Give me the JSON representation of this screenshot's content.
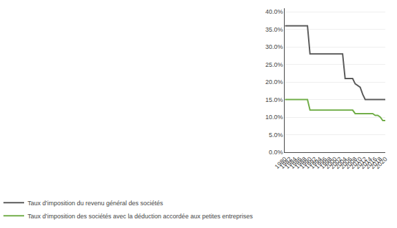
{
  "chart_data": {
    "type": "line",
    "x": [
      1980,
      1981,
      1982,
      1983,
      1984,
      1985,
      1986,
      1987,
      1988,
      1989,
      1990,
      1991,
      1992,
      1993,
      1994,
      1995,
      1996,
      1997,
      1998,
      1999,
      2000,
      2001,
      2002,
      2003,
      2004,
      2005,
      2006,
      2007,
      2008,
      2009,
      2010,
      2011,
      2012,
      2013,
      2014,
      2015,
      2016,
      2017,
      2018,
      2019,
      2020
    ],
    "series": [
      {
        "name": "Taux d’imposition du revenu général des sociétés",
        "color": "#595959",
        "values": [
          0.36,
          0.36,
          0.36,
          0.36,
          0.36,
          0.36,
          0.36,
          0.36,
          0.36,
          0.36,
          0.28,
          0.28,
          0.28,
          0.28,
          0.28,
          0.28,
          0.28,
          0.28,
          0.28,
          0.28,
          0.28,
          0.28,
          0.28,
          0.28,
          0.21,
          0.21,
          0.21,
          0.21,
          0.195,
          0.19,
          0.185,
          0.165,
          0.15,
          0.15,
          0.15,
          0.15,
          0.15,
          0.15,
          0.15,
          0.15,
          0.15
        ]
      },
      {
        "name": "Taux d’imposition des sociétés avec la déduction accordée aux petites entreprises",
        "color": "#70AD47",
        "values": [
          0.15,
          0.15,
          0.15,
          0.15,
          0.15,
          0.15,
          0.15,
          0.15,
          0.15,
          0.15,
          0.12,
          0.12,
          0.12,
          0.12,
          0.12,
          0.12,
          0.12,
          0.12,
          0.12,
          0.12,
          0.12,
          0.12,
          0.12,
          0.12,
          0.12,
          0.12,
          0.12,
          0.12,
          0.11,
          0.11,
          0.11,
          0.11,
          0.11,
          0.11,
          0.11,
          0.11,
          0.105,
          0.105,
          0.1,
          0.09,
          0.09
        ]
      }
    ],
    "xlim": [
      1980,
      2020
    ],
    "xticks": [
      1980,
      1982,
      1984,
      1986,
      1988,
      1990,
      1992,
      1994,
      1996,
      1998,
      2000,
      2002,
      2004,
      2006,
      2008,
      2010,
      2012,
      2014,
      2016,
      2018,
      2020
    ],
    "ylim": [
      0.0,
      0.41
    ],
    "yticks": [
      {
        "value": 0.0,
        "label": "0.0%"
      },
      {
        "value": 0.05,
        "label": "5.0%"
      },
      {
        "value": 0.1,
        "label": "10.0%"
      },
      {
        "value": 0.15,
        "label": "15.0%"
      },
      {
        "value": 0.2,
        "label": "20.0%"
      },
      {
        "value": 0.25,
        "label": "25.0%"
      },
      {
        "value": 0.3,
        "label": "30.0%"
      },
      {
        "value": 0.35,
        "label": "35.0%"
      },
      {
        "value": 0.4,
        "label": "40.0%"
      }
    ],
    "grid": true,
    "legend": "lower left"
  }
}
